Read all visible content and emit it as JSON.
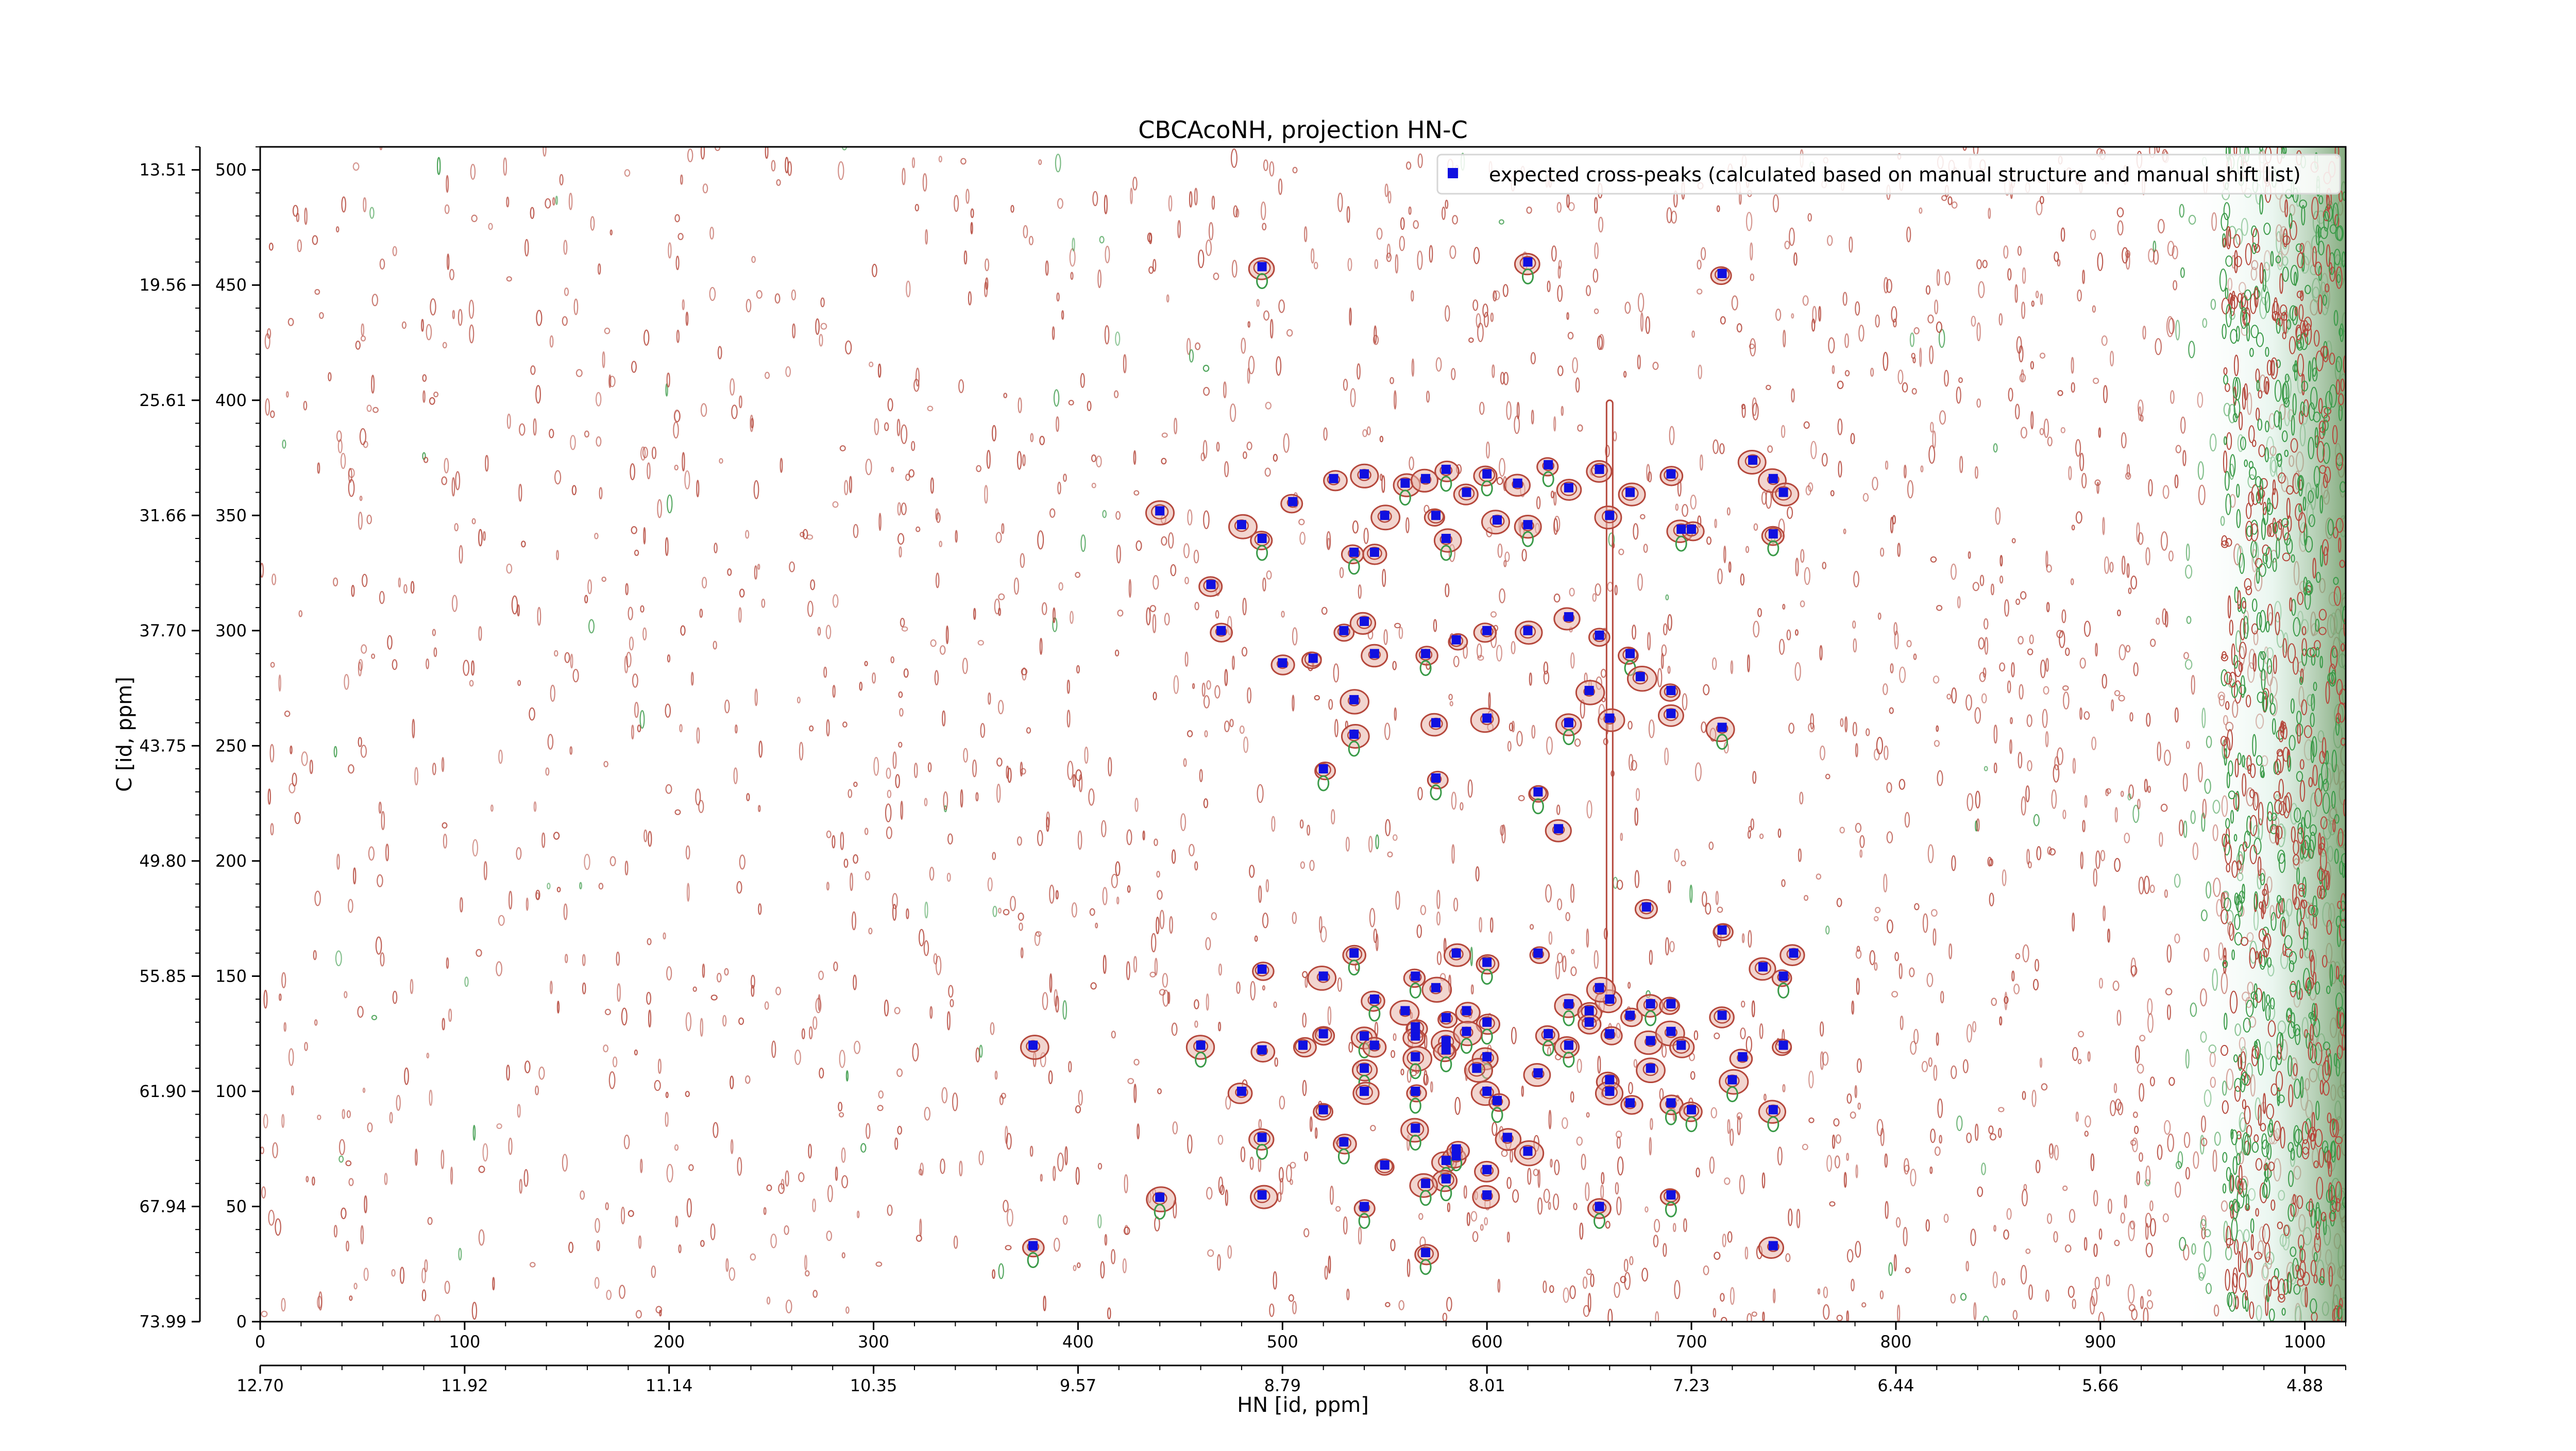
{
  "chart_data": {
    "type": "scatter",
    "title": "CBCAcoNH, projection HN-C",
    "xlabel": "HN [id, ppm]",
    "ylabel": "C [id, ppm]",
    "x_index_range": [
      0,
      1020
    ],
    "y_index_range": [
      0,
      510
    ],
    "x_index_ticks": [
      "0",
      "100",
      "200",
      "300",
      "400",
      "500",
      "600",
      "700",
      "800",
      "900",
      "1000"
    ],
    "y_index_ticks": [
      "0",
      "50",
      "100",
      "150",
      "200",
      "250",
      "300",
      "350",
      "400",
      "450",
      "500"
    ],
    "x_ppm_ticks": [
      "12.70",
      "11.92",
      "11.14",
      "10.35",
      "9.57",
      "8.79",
      "8.01",
      "7.23",
      "6.44",
      "5.66",
      "4.88"
    ],
    "y_ppm_ticks": [
      "73.99",
      "67.94",
      "61.90",
      "55.85",
      "49.80",
      "43.75",
      "37.70",
      "31.66",
      "25.61",
      "19.56",
      "13.51"
    ],
    "legend": {
      "placement": "top-right",
      "label": "expected cross-peaks (calculated based on manual structure and manual shift list)"
    },
    "colors": {
      "peak_marker": "#1010e0",
      "contour_positive": "#b5483c",
      "contour_negative": "#3a9a48",
      "noise_band": "#a8dcc8"
    },
    "series": [
      {
        "values": [
          [
            490,
            458
          ],
          [
            620,
            460
          ],
          [
            715,
            455
          ],
          [
            440,
            352
          ],
          [
            480,
            346
          ],
          [
            490,
            340
          ],
          [
            505,
            356
          ],
          [
            525,
            366
          ],
          [
            540,
            368
          ],
          [
            550,
            350
          ],
          [
            560,
            364
          ],
          [
            570,
            366
          ],
          [
            575,
            350
          ],
          [
            580,
            370
          ],
          [
            590,
            360
          ],
          [
            600,
            368
          ],
          [
            605,
            348
          ],
          [
            615,
            364
          ],
          [
            620,
            346
          ],
          [
            630,
            372
          ],
          [
            640,
            362
          ],
          [
            655,
            370
          ],
          [
            660,
            350
          ],
          [
            670,
            360
          ],
          [
            690,
            368
          ],
          [
            695,
            344
          ],
          [
            700,
            344
          ],
          [
            730,
            374
          ],
          [
            740,
            366
          ],
          [
            745,
            360
          ],
          [
            740,
            342
          ],
          [
            535,
            334
          ],
          [
            545,
            334
          ],
          [
            580,
            340
          ],
          [
            465,
            320
          ],
          [
            470,
            300
          ],
          [
            530,
            300
          ],
          [
            540,
            304
          ],
          [
            500,
            286
          ],
          [
            515,
            288
          ],
          [
            545,
            290
          ],
          [
            570,
            290
          ],
          [
            585,
            296
          ],
          [
            600,
            300
          ],
          [
            620,
            300
          ],
          [
            640,
            306
          ],
          [
            655,
            298
          ],
          [
            670,
            290
          ],
          [
            675,
            280
          ],
          [
            690,
            274
          ],
          [
            650,
            274
          ],
          [
            535,
            270
          ],
          [
            575,
            260
          ],
          [
            600,
            262
          ],
          [
            640,
            260
          ],
          [
            660,
            262
          ],
          [
            690,
            264
          ],
          [
            715,
            258
          ],
          [
            535,
            255
          ],
          [
            520,
            240
          ],
          [
            575,
            236
          ],
          [
            625,
            230
          ],
          [
            635,
            214
          ],
          [
            678,
            180
          ],
          [
            490,
            153
          ],
          [
            520,
            150
          ],
          [
            535,
            160
          ],
          [
            565,
            150
          ],
          [
            585,
            160
          ],
          [
            600,
            156
          ],
          [
            625,
            160
          ],
          [
            545,
            140
          ],
          [
            560,
            135
          ],
          [
            575,
            145
          ],
          [
            580,
            132
          ],
          [
            590,
            135
          ],
          [
            600,
            130
          ],
          [
            640,
            138
          ],
          [
            650,
            135
          ],
          [
            660,
            140
          ],
          [
            670,
            133
          ],
          [
            680,
            138
          ],
          [
            690,
            138
          ],
          [
            715,
            133
          ],
          [
            735,
            154
          ],
          [
            745,
            150
          ],
          [
            750,
            160
          ],
          [
            715,
            170
          ],
          [
            655,
            145
          ],
          [
            565,
            128
          ],
          [
            580,
            122
          ],
          [
            590,
            126
          ],
          [
            510,
            120
          ],
          [
            520,
            125
          ],
          [
            540,
            124
          ],
          [
            545,
            120
          ],
          [
            565,
            124
          ],
          [
            580,
            118
          ],
          [
            600,
            115
          ],
          [
            630,
            125
          ],
          [
            640,
            120
          ],
          [
            650,
            130
          ],
          [
            660,
            125
          ],
          [
            680,
            122
          ],
          [
            690,
            126
          ],
          [
            695,
            120
          ],
          [
            725,
            115
          ],
          [
            745,
            120
          ],
          [
            378,
            120
          ],
          [
            460,
            120
          ],
          [
            490,
            118
          ],
          [
            540,
            110
          ],
          [
            565,
            115
          ],
          [
            595,
            110
          ],
          [
            600,
            100
          ],
          [
            625,
            108
          ],
          [
            660,
            105
          ],
          [
            680,
            110
          ],
          [
            480,
            100
          ],
          [
            520,
            92
          ],
          [
            540,
            100
          ],
          [
            565,
            100
          ],
          [
            605,
            96
          ],
          [
            660,
            100
          ],
          [
            670,
            95
          ],
          [
            690,
            95
          ],
          [
            700,
            92
          ],
          [
            740,
            92
          ],
          [
            720,
            105
          ],
          [
            490,
            80
          ],
          [
            565,
            84
          ],
          [
            580,
            70
          ],
          [
            585,
            72
          ],
          [
            610,
            80
          ],
          [
            620,
            74
          ],
          [
            530,
            78
          ],
          [
            550,
            68
          ],
          [
            585,
            75
          ],
          [
            580,
            62
          ],
          [
            600,
            66
          ],
          [
            440,
            54
          ],
          [
            490,
            55
          ],
          [
            540,
            50
          ],
          [
            600,
            55
          ],
          [
            655,
            50
          ],
          [
            690,
            55
          ],
          [
            570,
            60
          ],
          [
            378,
            33
          ],
          [
            570,
            30
          ],
          [
            740,
            33
          ]
        ]
      }
    ]
  }
}
